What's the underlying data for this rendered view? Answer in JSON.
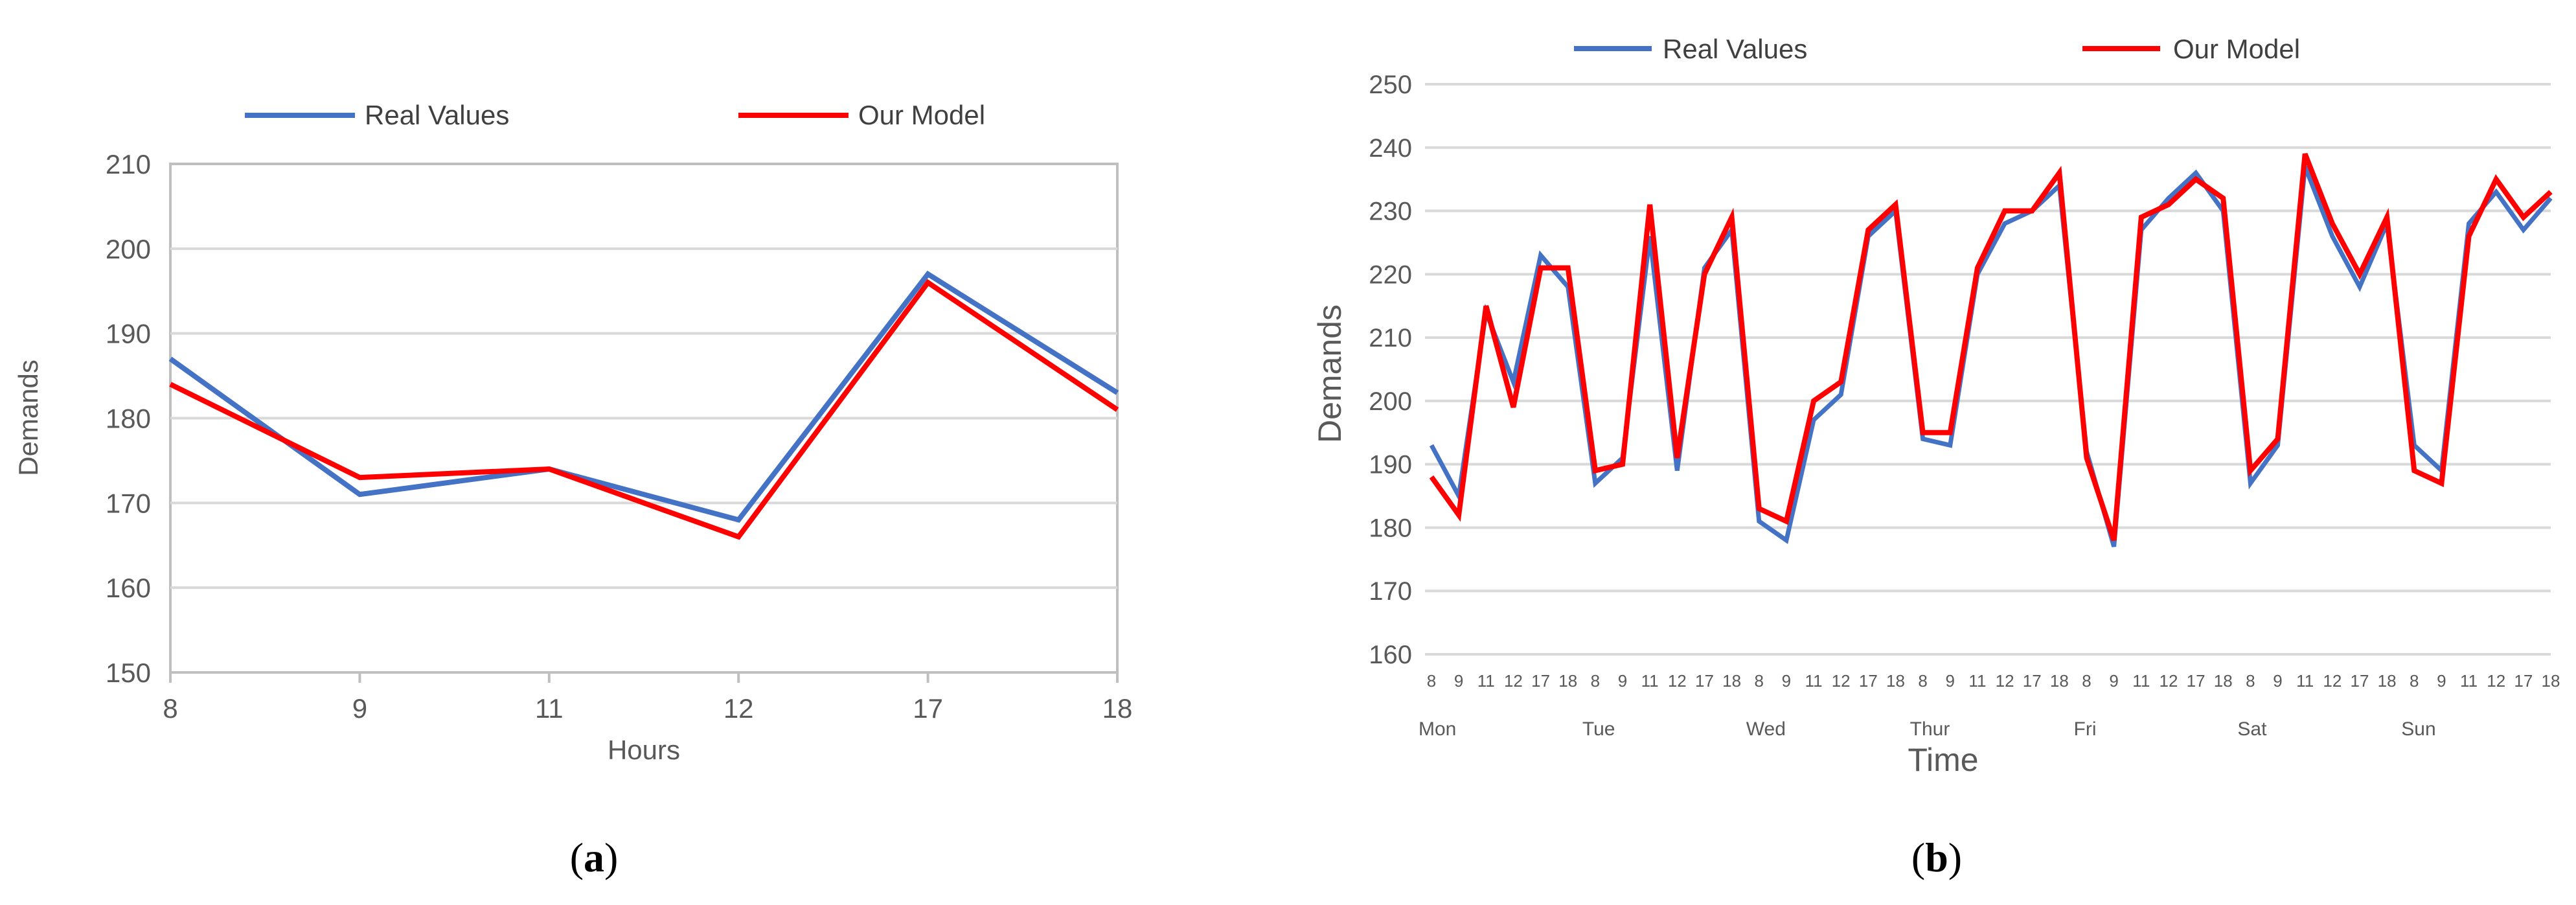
{
  "chart_data": [
    {
      "type": "line",
      "panel_label": "a",
      "xlabel": "Hours",
      "ylabel": "Demands",
      "categories": [
        "8",
        "9",
        "11",
        "12",
        "17",
        "18"
      ],
      "ylim": [
        150,
        210
      ],
      "yticks": [
        150,
        160,
        170,
        180,
        190,
        200,
        210
      ],
      "grid": true,
      "legend": "top",
      "series": [
        {
          "name": "Real Values",
          "color": "#4472C4",
          "values": [
            187,
            171,
            174,
            168,
            197,
            183
          ]
        },
        {
          "name": "Our Model",
          "color": "#FF0000",
          "values": [
            184,
            173,
            174,
            166,
            196,
            181
          ]
        }
      ]
    },
    {
      "type": "line",
      "panel_label": "b",
      "xlabel": "Time",
      "ylabel": "Demands",
      "categories": [
        "8",
        "9",
        "11",
        "12",
        "17",
        "18",
        "8",
        "9",
        "11",
        "12",
        "17",
        "18",
        "8",
        "9",
        "11",
        "12",
        "17",
        "18",
        "8",
        "9",
        "11",
        "12",
        "17",
        "18",
        "8",
        "9",
        "11",
        "12",
        "17",
        "18",
        "8",
        "9",
        "11",
        "12",
        "17",
        "18",
        "8",
        "9",
        "11",
        "12",
        "17",
        "18"
      ],
      "groups": [
        "Mon",
        "Tue",
        "Wed",
        "Thur",
        "Fri",
        "Sat",
        "Sun"
      ],
      "ylim": [
        160,
        250
      ],
      "yticks": [
        160,
        170,
        180,
        190,
        200,
        210,
        220,
        230,
        240,
        250
      ],
      "grid": true,
      "legend": "top",
      "series": [
        {
          "name": "Real Values",
          "color": "#4472C4",
          "values": [
            193,
            185,
            214,
            203,
            223,
            218,
            187,
            191,
            226,
            189,
            221,
            227,
            181,
            178,
            197,
            201,
            226,
            230,
            194,
            193,
            220,
            228,
            230,
            234,
            192,
            177,
            227,
            232,
            236,
            230,
            187,
            193,
            237,
            226,
            218,
            228,
            193,
            189,
            228,
            233,
            227,
            232
          ]
        },
        {
          "name": "Our Model",
          "color": "#FF0000",
          "values": [
            188,
            182,
            215,
            199,
            221,
            221,
            189,
            190,
            231,
            191,
            220,
            229,
            183,
            181,
            200,
            203,
            227,
            231,
            195,
            195,
            221,
            230,
            230,
            236,
            191,
            178,
            229,
            231,
            235,
            232,
            189,
            194,
            239,
            228,
            220,
            229,
            189,
            187,
            226,
            235,
            229,
            233
          ]
        }
      ]
    }
  ]
}
